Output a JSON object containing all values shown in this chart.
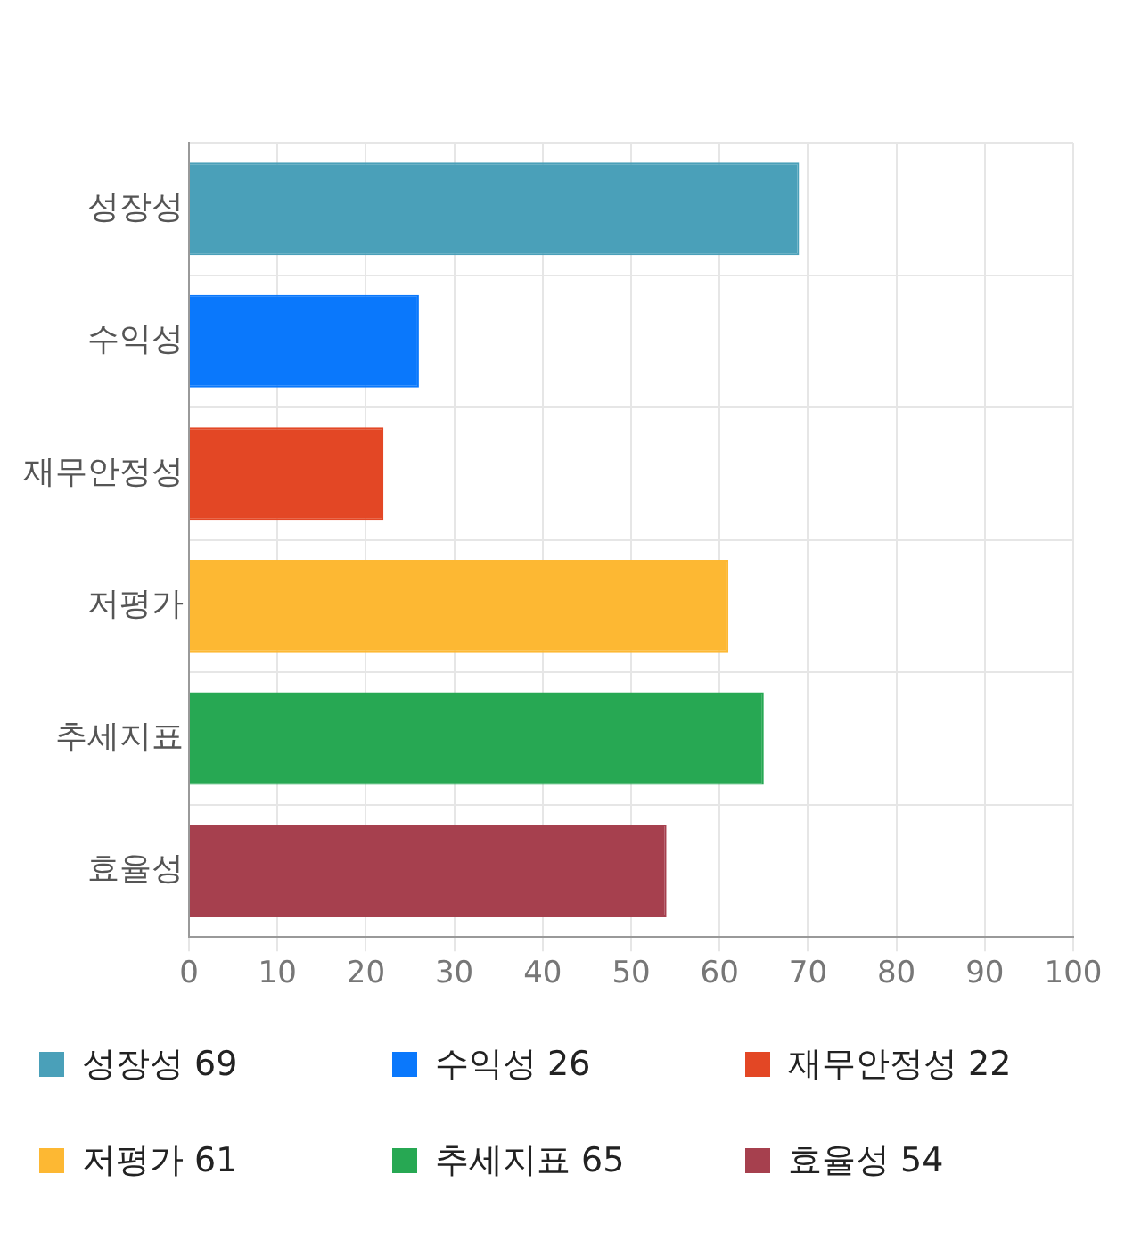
{
  "chart_data": {
    "type": "bar",
    "orientation": "horizontal",
    "categories": [
      "성장성",
      "수익성",
      "재무안정성",
      "저평가",
      "추세지표",
      "효율성"
    ],
    "values": [
      69,
      26,
      22,
      61,
      65,
      54
    ],
    "colors": [
      "#4aa0b9",
      "#0a78fc",
      "#e34725",
      "#fdb833",
      "#27a853",
      "#a6404e"
    ],
    "xlim": [
      0,
      100
    ],
    "xticks": [
      0,
      10,
      20,
      30,
      40,
      50,
      60,
      70,
      80,
      90,
      100
    ],
    "grid": true,
    "annotations": [
      "성장성 69",
      "수익성 26",
      "재무안정성 22",
      "저평가 61",
      "추세지표 65",
      "효율성 54"
    ]
  }
}
